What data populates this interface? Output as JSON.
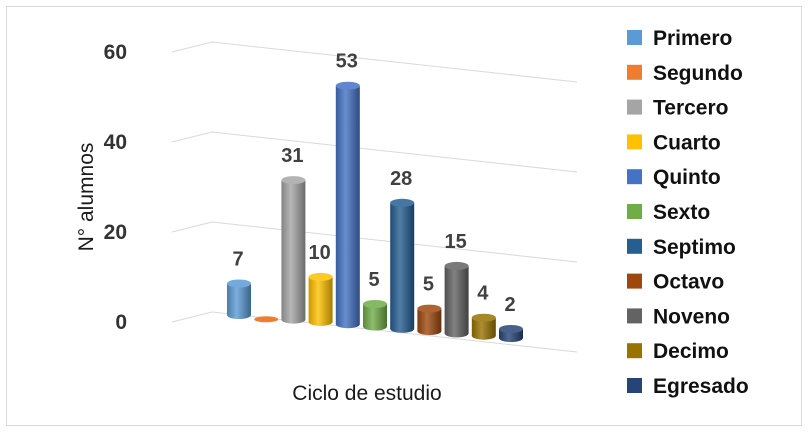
{
  "chart_data": {
    "type": "bar",
    "style": "3d-cylinder",
    "title": "",
    "xlabel": "Ciclo de estudio",
    "ylabel": "N° alumnos",
    "ylim": [
      0,
      60
    ],
    "yticks": [
      "0",
      "20",
      "40",
      "60"
    ],
    "grid": true,
    "legend_position": "right",
    "series": [
      {
        "name": "Primero",
        "value": 7,
        "label": "7",
        "color": "#5b9bd5"
      },
      {
        "name": "Segundo",
        "value": 0,
        "label": "",
        "color": "#ed7d31"
      },
      {
        "name": "Tercero",
        "value": 31,
        "label": "31",
        "color": "#a5a5a5"
      },
      {
        "name": "Cuarto",
        "value": 10,
        "label": "10",
        "color": "#ffc000"
      },
      {
        "name": "Quinto",
        "value": 53,
        "label": "53",
        "color": "#4472c4"
      },
      {
        "name": "Sexto",
        "value": 5,
        "label": "5",
        "color": "#70ad47"
      },
      {
        "name": "Septimo",
        "value": 28,
        "label": "28",
        "color": "#255e91"
      },
      {
        "name": "Octavo",
        "value": 5,
        "label": "5",
        "color": "#9e480e"
      },
      {
        "name": "Noveno",
        "value": 15,
        "label": "15",
        "color": "#636363"
      },
      {
        "name": "Decimo",
        "value": 4,
        "label": "4",
        "color": "#997300"
      },
      {
        "name": "Egresado",
        "value": 2,
        "label": "2",
        "color": "#264478"
      }
    ]
  }
}
